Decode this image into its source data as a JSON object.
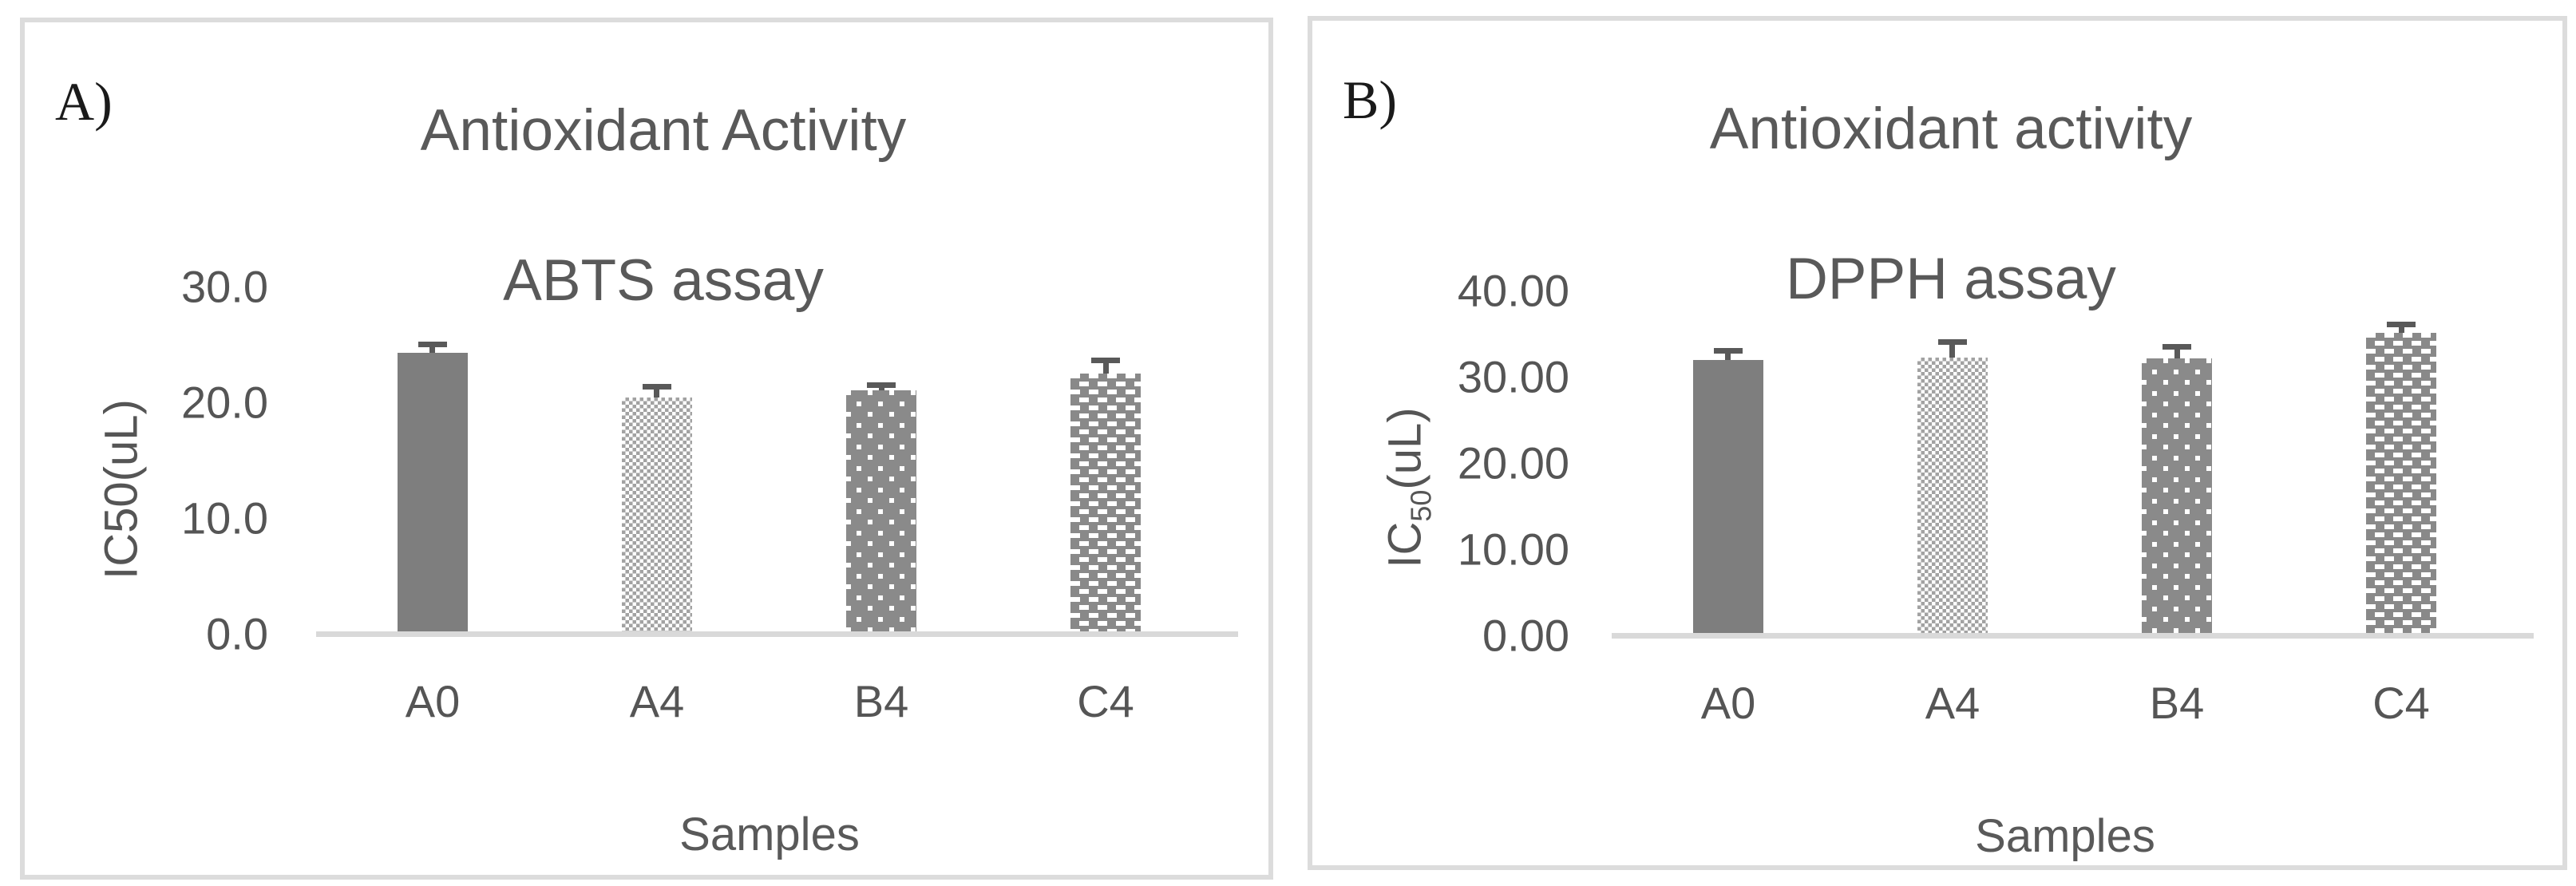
{
  "figure": {
    "panel_a_label": "A)",
    "panel_b_label": "B)"
  },
  "colors": {
    "bar_solid": "#7e7e7e",
    "pattern_base_gray": "#8a8a8a",
    "checker_gray": "#a2a2a2",
    "error_bar": "#595959",
    "axis_line": "#d9d9d9",
    "panel_border": "#dcdcdc",
    "title_text": "#595959",
    "tick_text": "#555555",
    "panel_label_text": "#1a1a1a"
  },
  "chart_data": [
    {
      "type": "bar",
      "panel_label": "A)",
      "title_lines": [
        "Antioxidant Activity",
        "ABTS assay"
      ],
      "ylabel": {
        "prefix": "IC50(uL)",
        "sub": "",
        "suffix": ""
      },
      "xlabel": "Samples",
      "categories": [
        "A0",
        "A4",
        "B4",
        "C4"
      ],
      "values": [
        24.3,
        20.4,
        21.0,
        22.5
      ],
      "errors": [
        0.7,
        0.9,
        0.4,
        1.1
      ],
      "error_direction": "upper-only",
      "ylim": [
        0,
        30
      ],
      "ytick_labels": [
        "0.0",
        "10.0",
        "20.0",
        "30.0"
      ],
      "grid": "off",
      "legend": "none",
      "bar_patterns": [
        "solid",
        "checker",
        "dots",
        "dashes"
      ]
    },
    {
      "type": "bar",
      "panel_label": "B)",
      "title_lines": [
        "Antioxidant activity",
        "DPPH assay"
      ],
      "ylabel": {
        "prefix": "IC",
        "sub": "50",
        "suffix": "(uL)"
      },
      "xlabel": "Samples",
      "categories": [
        "A0",
        "A4",
        "B4",
        "C4"
      ],
      "values": [
        31.9,
        32.2,
        32.1,
        35.1
      ],
      "errors": [
        1.0,
        1.8,
        1.3,
        0.9
      ],
      "error_direction": "upper-only",
      "ylim": [
        0,
        40
      ],
      "ytick_labels": [
        "0.00",
        "10.00",
        "20.00",
        "30.00",
        "40.00"
      ],
      "grid": "off",
      "legend": "none",
      "bar_patterns": [
        "solid",
        "checker",
        "dots",
        "dashes"
      ]
    }
  ]
}
